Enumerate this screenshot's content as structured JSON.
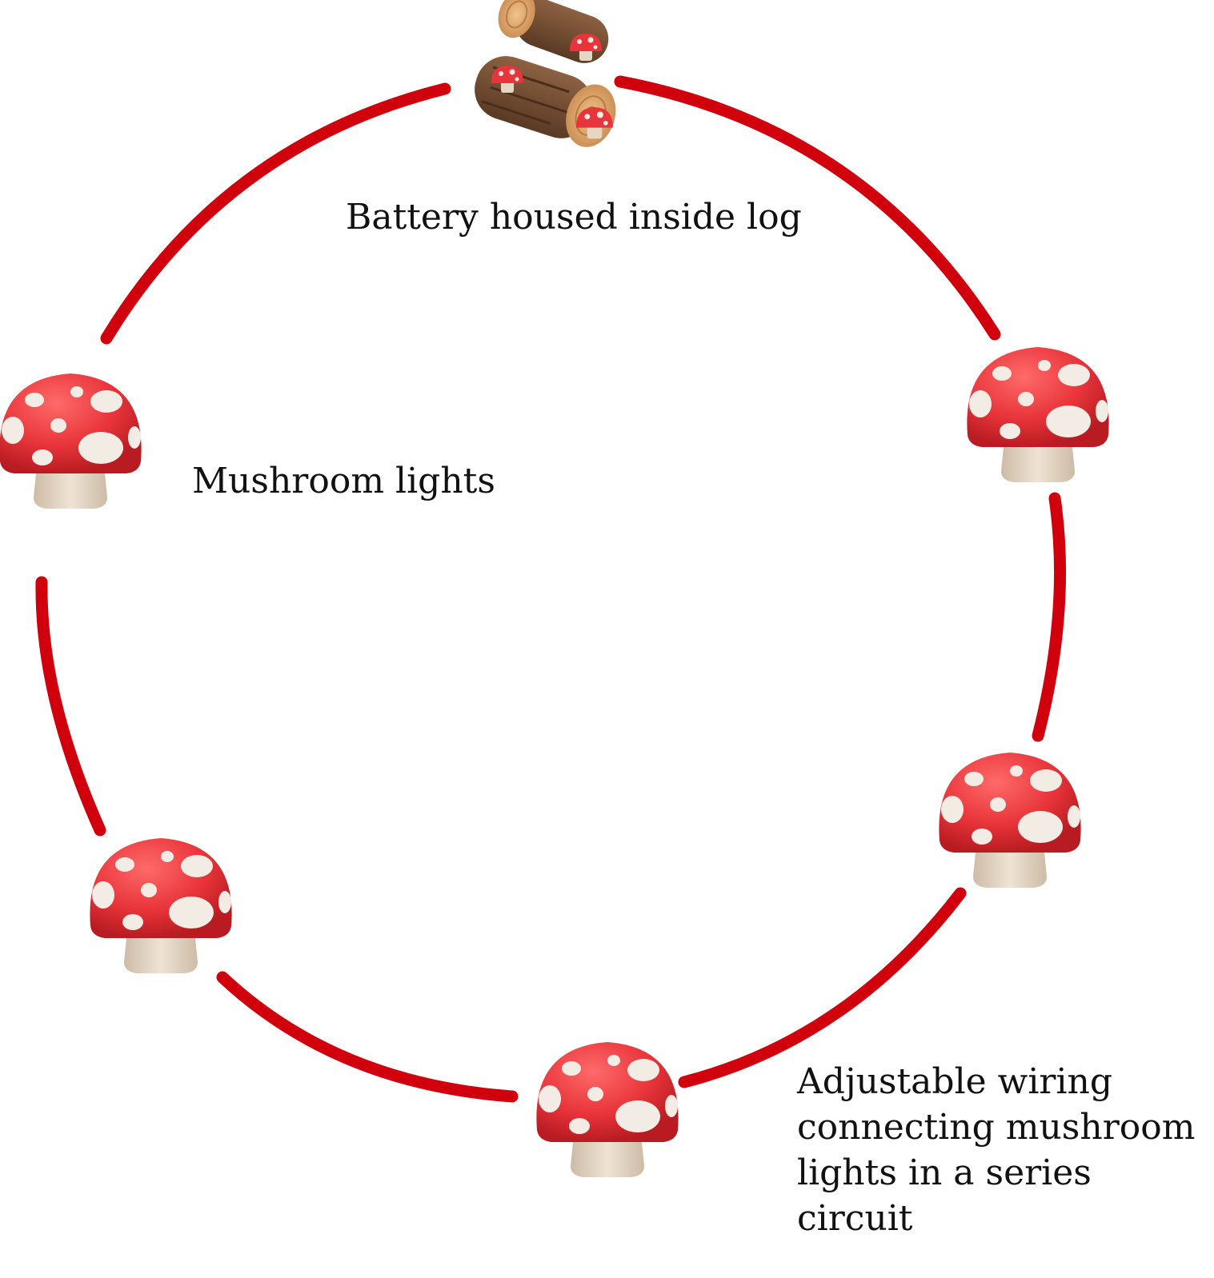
{
  "labels": {
    "battery": "Battery housed inside log",
    "mushroom_lights": "Mushroom lights",
    "wiring": "Adjustable wiring\nconnecting mushroom\nlights in a series\ncircuit"
  },
  "colors": {
    "wire": "#d0000d",
    "cap": "#e8343a",
    "cap_dark": "#b81c22",
    "spot": "#f3ece4",
    "stem": "#e6d7c5",
    "log": "#7a5134",
    "log_end": "#d7a46a"
  },
  "icons": {
    "battery_log": "log-with-mushrooms-icon",
    "light": "mushroom-icon"
  }
}
